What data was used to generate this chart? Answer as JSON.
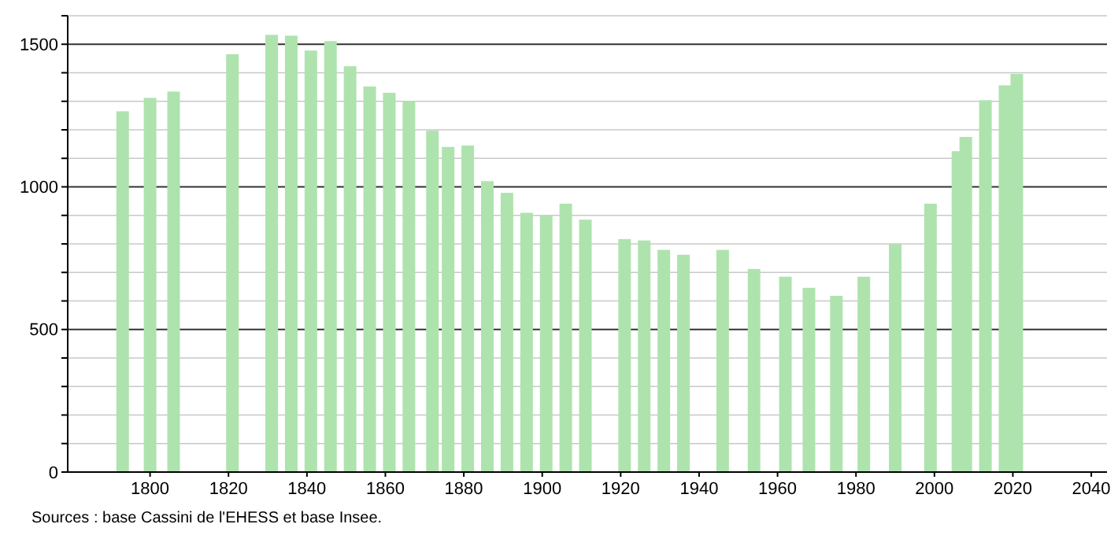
{
  "chart_data": {
    "type": "bar",
    "x": [
      1793,
      1800,
      1806,
      1821,
      1831,
      1836,
      1841,
      1846,
      1851,
      1856,
      1861,
      1866,
      1872,
      1876,
      1881,
      1886,
      1891,
      1896,
      1901,
      1906,
      1911,
      1921,
      1926,
      1931,
      1936,
      1946,
      1954,
      1962,
      1968,
      1975,
      1982,
      1990,
      1999,
      2006,
      2008,
      2013,
      2018,
      2021
    ],
    "series": [
      {
        "color": "#aee3ae",
        "values": [
          1265,
          1312,
          1334,
          1465,
          1533,
          1530,
          1478,
          1511,
          1423,
          1352,
          1330,
          1301,
          1197,
          1140,
          1145,
          1020,
          979,
          909,
          902,
          941,
          885,
          817,
          812,
          779,
          762,
          779,
          712,
          685,
          646,
          618,
          685,
          799,
          941,
          1125,
          1175,
          1304,
          1356,
          1396
        ]
      }
    ],
    "xlim": [
      1779,
      2044
    ],
    "xticks": [
      1800,
      1820,
      1840,
      1860,
      1880,
      1900,
      1920,
      1940,
      1960,
      1980,
      2000,
      2020,
      2040
    ],
    "ylim": [
      0,
      1600
    ],
    "yticks": [
      0,
      {
        "value": 100,
        "label": null
      },
      {
        "value": 200,
        "label": null
      },
      {
        "value": 300,
        "label": null
      },
      {
        "value": 400,
        "label": null
      },
      500,
      {
        "value": 600,
        "label": null
      },
      {
        "value": 700,
        "label": null
      },
      {
        "value": 800,
        "label": null
      },
      {
        "value": 900,
        "label": null
      },
      1000,
      {
        "value": 1100,
        "label": null
      },
      {
        "value": 1200,
        "label": null
      },
      {
        "value": 1300,
        "label": null
      },
      {
        "value": 1400,
        "label": null
      },
      1500,
      {
        "value": 1600,
        "label": null
      }
    ],
    "grid": "y",
    "annotations": [
      "Sources : base Cassini de l'EHESS et base Insee."
    ]
  }
}
